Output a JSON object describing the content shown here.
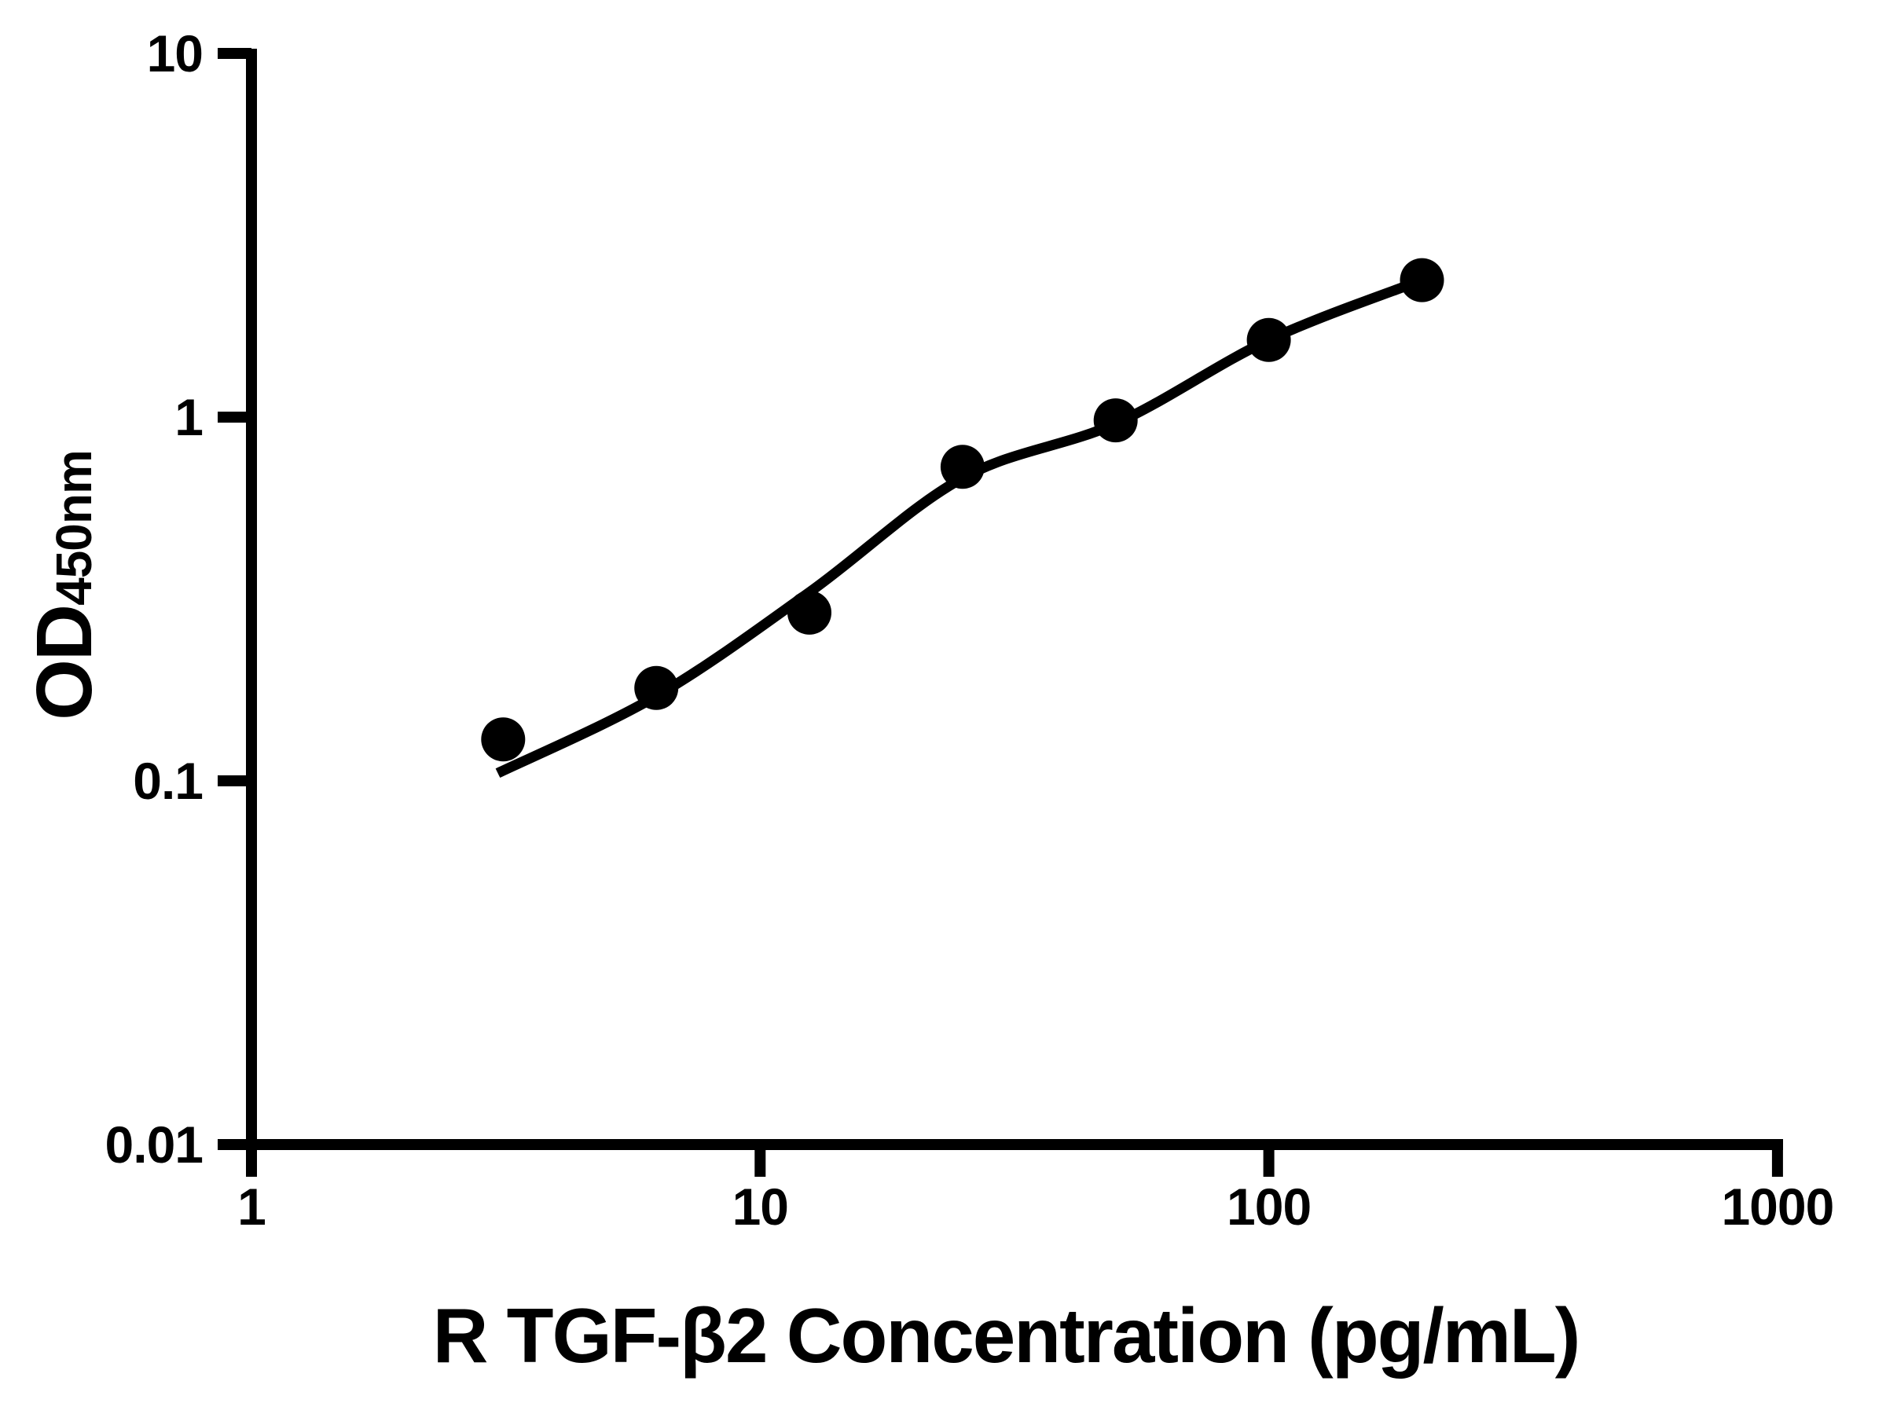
{
  "chart_data": {
    "type": "scatter",
    "title": "",
    "xlabel": "R TGF-β2 Concentration (pg/mL)",
    "ylabel": {
      "main": "OD",
      "sub": "450nm"
    },
    "x_scale": "log10",
    "y_scale": "log10",
    "xlim": [
      1,
      1000
    ],
    "ylim": [
      0.01,
      10
    ],
    "grid": "off",
    "legend": "none",
    "x_ticks": [
      {
        "value": 1,
        "label": "1"
      },
      {
        "value": 10,
        "label": "10"
      },
      {
        "value": 100,
        "label": "100"
      },
      {
        "value": 1000,
        "label": "1000"
      }
    ],
    "y_ticks": [
      {
        "value": 10,
        "label": "10"
      },
      {
        "value": 1,
        "label": "1"
      },
      {
        "value": 0.1,
        "label": "0.1"
      },
      {
        "value": 0.01,
        "label": "0.01"
      }
    ],
    "series": [
      {
        "name": "standard-curve-points",
        "marker": "filled-circle",
        "points": [
          {
            "x": 3.125,
            "y": 0.13
          },
          {
            "x": 6.25,
            "y": 0.18
          },
          {
            "x": 12.5,
            "y": 0.29
          },
          {
            "x": 25,
            "y": 0.73
          },
          {
            "x": 50,
            "y": 0.98
          },
          {
            "x": 100,
            "y": 1.63
          },
          {
            "x": 200,
            "y": 2.38
          }
        ]
      }
    ],
    "fit_curve": [
      {
        "x": 3.05,
        "y": 0.105
      },
      {
        "x": 6.25,
        "y": 0.171
      },
      {
        "x": 12.5,
        "y": 0.33
      },
      {
        "x": 25,
        "y": 0.68
      },
      {
        "x": 50,
        "y": 0.96
      },
      {
        "x": 100,
        "y": 1.63
      },
      {
        "x": 200,
        "y": 2.38
      }
    ],
    "colors": {
      "axis": "#000000",
      "marker": "#000000",
      "curve": "#000000",
      "background": "#ffffff"
    }
  }
}
